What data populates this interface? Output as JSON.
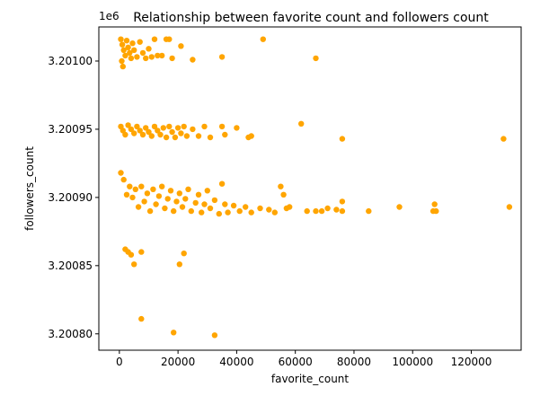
{
  "chart_data": {
    "type": "scatter",
    "title": "Relationship between favorite count and followers count",
    "xlabel": "favorite_count",
    "ylabel": "followers_count",
    "y_offset_label": "1e6",
    "color": "#ffa500",
    "xlim": [
      -7000,
      137000
    ],
    "ylim": [
      3.200788,
      3.201025
    ],
    "x_ticks": [
      0,
      20000,
      40000,
      60000,
      80000,
      100000,
      120000
    ],
    "x_tick_labels": [
      "0",
      "20000",
      "40000",
      "60000",
      "80000",
      "100000",
      "120000"
    ],
    "y_ticks": [
      3.2008,
      3.20085,
      3.2009,
      3.20095,
      3.201
    ],
    "y_tick_labels": [
      "3.20080",
      "3.20085",
      "3.20090",
      "3.20095",
      "3.20100"
    ],
    "grid": false,
    "points": [
      [
        500,
        3.201016
      ],
      [
        1000,
        3.201012
      ],
      [
        1500,
        3.201008
      ],
      [
        2000,
        3.201004
      ],
      [
        800,
        3.201
      ],
      [
        1200,
        3.200996
      ],
      [
        2500,
        3.201015
      ],
      [
        3000,
        3.20101
      ],
      [
        3500,
        3.201006
      ],
      [
        4000,
        3.201002
      ],
      [
        4500,
        3.201013
      ],
      [
        5000,
        3.201008
      ],
      [
        6000,
        3.201003
      ],
      [
        7000,
        3.201014
      ],
      [
        8000,
        3.201006
      ],
      [
        9000,
        3.201002
      ],
      [
        10000,
        3.201009
      ],
      [
        11000,
        3.201003
      ],
      [
        12000,
        3.201016
      ],
      [
        13000,
        3.201004
      ],
      [
        14500,
        3.201004
      ],
      [
        16000,
        3.201016
      ],
      [
        17000,
        3.201016
      ],
      [
        18000,
        3.201002
      ],
      [
        21000,
        3.201011
      ],
      [
        25000,
        3.201001
      ],
      [
        35000,
        3.201003
      ],
      [
        49000,
        3.201016
      ],
      [
        67000,
        3.201002
      ],
      [
        500,
        3.200952
      ],
      [
        1200,
        3.200949
      ],
      [
        2000,
        3.200946
      ],
      [
        3000,
        3.200953
      ],
      [
        4000,
        3.20095
      ],
      [
        5000,
        3.200947
      ],
      [
        6000,
        3.200952
      ],
      [
        7000,
        3.200949
      ],
      [
        8000,
        3.200946
      ],
      [
        9000,
        3.200951
      ],
      [
        10000,
        3.200948
      ],
      [
        11000,
        3.200945
      ],
      [
        12000,
        3.200952
      ],
      [
        13000,
        3.200949
      ],
      [
        14000,
        3.200946
      ],
      [
        15000,
        3.200951
      ],
      [
        16000,
        3.200944
      ],
      [
        17000,
        3.200952
      ],
      [
        18000,
        3.200948
      ],
      [
        19000,
        3.200944
      ],
      [
        20000,
        3.200951
      ],
      [
        21000,
        3.200947
      ],
      [
        22000,
        3.200952
      ],
      [
        23000,
        3.200945
      ],
      [
        25000,
        3.20095
      ],
      [
        27000,
        3.200945
      ],
      [
        29000,
        3.200952
      ],
      [
        31000,
        3.200944
      ],
      [
        35000,
        3.200952
      ],
      [
        36000,
        3.200946
      ],
      [
        40000,
        3.200951
      ],
      [
        44000,
        3.200944
      ],
      [
        45000,
        3.200945
      ],
      [
        62000,
        3.200954
      ],
      [
        76000,
        3.200943
      ],
      [
        131000,
        3.200943
      ],
      [
        500,
        3.200918
      ],
      [
        1500,
        3.200913
      ],
      [
        2500,
        3.200902
      ],
      [
        3500,
        3.200908
      ],
      [
        4500,
        3.2009
      ],
      [
        5500,
        3.200906
      ],
      [
        6500,
        3.200893
      ],
      [
        7500,
        3.200908
      ],
      [
        8500,
        3.200897
      ],
      [
        9500,
        3.200903
      ],
      [
        10500,
        3.20089
      ],
      [
        11500,
        3.200906
      ],
      [
        12500,
        3.200895
      ],
      [
        13500,
        3.200901
      ],
      [
        14500,
        3.200908
      ],
      [
        15500,
        3.200892
      ],
      [
        16500,
        3.200899
      ],
      [
        17500,
        3.200905
      ],
      [
        18500,
        3.20089
      ],
      [
        19500,
        3.200897
      ],
      [
        20500,
        3.200903
      ],
      [
        21500,
        3.200893
      ],
      [
        22500,
        3.200899
      ],
      [
        23500,
        3.200906
      ],
      [
        24500,
        3.20089
      ],
      [
        26000,
        3.200896
      ],
      [
        27000,
        3.200902
      ],
      [
        28000,
        3.200889
      ],
      [
        29000,
        3.200895
      ],
      [
        30000,
        3.200905
      ],
      [
        31000,
        3.200892
      ],
      [
        32500,
        3.200898
      ],
      [
        34000,
        3.200888
      ],
      [
        35000,
        3.20091
      ],
      [
        36000,
        3.200895
      ],
      [
        37000,
        3.200889
      ],
      [
        39000,
        3.200894
      ],
      [
        41000,
        3.20089
      ],
      [
        43000,
        3.200893
      ],
      [
        45000,
        3.200889
      ],
      [
        48000,
        3.200892
      ],
      [
        51000,
        3.200891
      ],
      [
        53000,
        3.200889
      ],
      [
        55000,
        3.200908
      ],
      [
        56000,
        3.200902
      ],
      [
        57000,
        3.200892
      ],
      [
        58000,
        3.200893
      ],
      [
        64000,
        3.20089
      ],
      [
        67000,
        3.20089
      ],
      [
        69000,
        3.20089
      ],
      [
        71000,
        3.200892
      ],
      [
        74000,
        3.200891
      ],
      [
        76000,
        3.20089
      ],
      [
        76000,
        3.200897
      ],
      [
        85000,
        3.20089
      ],
      [
        95500,
        3.200893
      ],
      [
        107000,
        3.20089
      ],
      [
        107500,
        3.200895
      ],
      [
        108000,
        3.20089
      ],
      [
        133000,
        3.200893
      ],
      [
        2000,
        3.200862
      ],
      [
        3000,
        3.20086
      ],
      [
        4000,
        3.200858
      ],
      [
        5000,
        3.200851
      ],
      [
        7500,
        3.20086
      ],
      [
        20500,
        3.200851
      ],
      [
        22000,
        3.200859
      ],
      [
        7500,
        3.200811
      ],
      [
        18500,
        3.200801
      ],
      [
        32500,
        3.200799
      ]
    ]
  }
}
